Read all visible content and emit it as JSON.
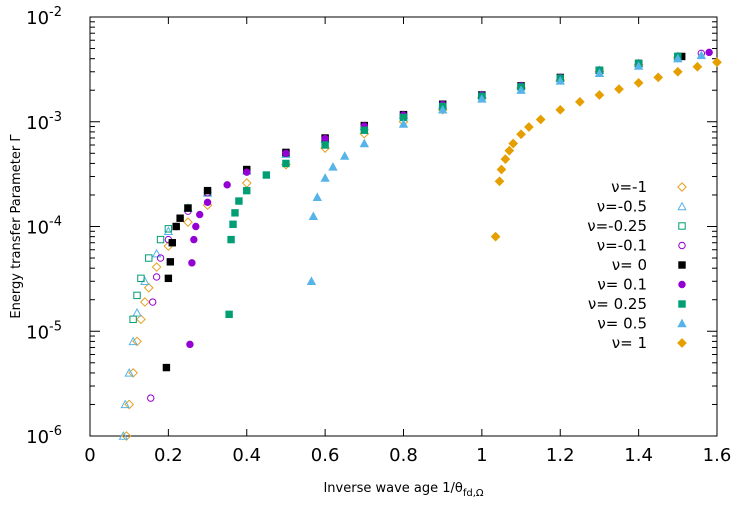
{
  "chart_data": {
    "type": "scatter",
    "title": "",
    "xlabel": "Inverse wave age 1/θ",
    "xlabel_subscript": "fd,Ω",
    "ylabel": "Energy transfer Parameter  Γ",
    "xlim": [
      0,
      1.6
    ],
    "ylim": [
      1e-06,
      0.01
    ],
    "yscale": "log",
    "grid": false,
    "legend_position": "right",
    "x_ticks": [
      {
        "value": 0,
        "label": "0"
      },
      {
        "value": 0.2,
        "label": "0.2"
      },
      {
        "value": 0.4,
        "label": "0.4"
      },
      {
        "value": 0.6,
        "label": "0.6"
      },
      {
        "value": 0.8,
        "label": "0.8"
      },
      {
        "value": 1,
        "label": "1"
      },
      {
        "value": 1.2,
        "label": "1.2"
      },
      {
        "value": 1.4,
        "label": "1.4"
      },
      {
        "value": 1.6,
        "label": "1.6"
      }
    ],
    "y_ticks": [
      {
        "value": 1e-06,
        "base": "10",
        "exp": "-6"
      },
      {
        "value": 1e-05,
        "base": "10",
        "exp": "-5"
      },
      {
        "value": 0.0001,
        "base": "10",
        "exp": "-4"
      },
      {
        "value": 0.001,
        "base": "10",
        "exp": "-3"
      },
      {
        "value": 0.01,
        "base": "10",
        "exp": "-2"
      }
    ],
    "series": [
      {
        "name": "ν=-1",
        "marker": "diamond-open",
        "color": "#e6a020",
        "x": [
          0.093,
          0.1,
          0.11,
          0.12,
          0.13,
          0.14,
          0.15,
          0.17,
          0.2,
          0.25,
          0.3,
          0.4,
          0.5,
          0.6,
          0.7,
          0.8,
          0.9,
          1.0,
          1.1,
          1.2,
          1.3,
          1.4,
          1.5
        ],
        "y": [
          1e-06,
          2e-06,
          4e-06,
          8e-06,
          1.3e-05,
          1.9e-05,
          2.6e-05,
          4.1e-05,
          6.5e-05,
          0.00011,
          0.00016,
          0.00026,
          0.00039,
          0.00056,
          0.00077,
          0.001,
          0.0013,
          0.0017,
          0.0021,
          0.0025,
          0.003,
          0.0035,
          0.0041
        ]
      },
      {
        "name": "ν=-0.5",
        "marker": "triangle-open",
        "color": "#56b4e9",
        "x": [
          0.085,
          0.09,
          0.1,
          0.11,
          0.12,
          0.14,
          0.17,
          0.2,
          0.25,
          0.3,
          0.4,
          0.5,
          0.6,
          0.7,
          0.8,
          0.9,
          1.0,
          1.1,
          1.2,
          1.3,
          1.4,
          1.5
        ],
        "y": [
          1e-06,
          2e-06,
          4e-06,
          8e-06,
          1.5e-05,
          3e-05,
          5.5e-05,
          9e-05,
          0.00015,
          0.00021,
          0.00034,
          0.00049,
          0.00068,
          0.0009,
          0.00115,
          0.00145,
          0.0018,
          0.0022,
          0.0026,
          0.0031,
          0.0036,
          0.0042
        ]
      },
      {
        "name": "ν=-0.25",
        "marker": "square-open",
        "color": "#009e73",
        "x": [
          0.11,
          0.12,
          0.13,
          0.15,
          0.18,
          0.2,
          0.25,
          0.3,
          0.4,
          0.5,
          0.6,
          0.7,
          0.8,
          0.9,
          1.0,
          1.1,
          1.2,
          1.3,
          1.4,
          1.5
        ],
        "y": [
          1.3e-05,
          2.2e-05,
          3.2e-05,
          5e-05,
          7.5e-05,
          9.5e-05,
          0.00015,
          0.00021,
          0.00034,
          0.0005,
          0.00069,
          0.0009,
          0.00115,
          0.00145,
          0.0018,
          0.0022,
          0.0026,
          0.0031,
          0.0036,
          0.0042
        ]
      },
      {
        "name": "ν=-0.1",
        "marker": "circle-open",
        "color": "#9400d3",
        "x": [
          0.155,
          0.16,
          0.17,
          0.18,
          0.2,
          0.22,
          0.25,
          0.3,
          0.4,
          0.5,
          0.6,
          0.7,
          0.8,
          0.9,
          1.0,
          1.1,
          1.2,
          1.3,
          1.4,
          1.5,
          1.56
        ],
        "y": [
          2.3e-06,
          1.9e-05,
          3.3e-05,
          5e-05,
          7.5e-05,
          0.0001,
          0.00014,
          0.00021,
          0.00034,
          0.0005,
          0.00069,
          0.00091,
          0.00116,
          0.00146,
          0.0018,
          0.0022,
          0.00265,
          0.0031,
          0.0036,
          0.0042,
          0.0045
        ]
      },
      {
        "name": "ν= 0",
        "marker": "square-filled",
        "color": "#000000",
        "x": [
          0.195,
          0.2,
          0.205,
          0.21,
          0.22,
          0.23,
          0.25,
          0.3,
          0.4,
          0.5,
          0.6,
          0.7,
          0.8,
          0.9,
          1.0,
          1.1,
          1.2,
          1.3,
          1.4,
          1.51
        ],
        "y": [
          4.5e-06,
          3.2e-05,
          4.6e-05,
          7e-05,
          0.0001,
          0.00012,
          0.00015,
          0.00022,
          0.00035,
          0.00051,
          0.0007,
          0.00092,
          0.00117,
          0.00147,
          0.0018,
          0.0022,
          0.00265,
          0.0031,
          0.0036,
          0.0042
        ]
      },
      {
        "name": "ν= 0.1",
        "marker": "circle-filled",
        "color": "#9400d3",
        "x": [
          0.255,
          0.26,
          0.265,
          0.27,
          0.28,
          0.3,
          0.35,
          0.4,
          0.5,
          0.6,
          0.7,
          0.8,
          0.9,
          1.0,
          1.1,
          1.2,
          1.3,
          1.4,
          1.5,
          1.58
        ],
        "y": [
          7.5e-06,
          4.5e-05,
          7.5e-05,
          0.0001,
          0.00013,
          0.00017,
          0.00025,
          0.00033,
          0.0005,
          0.00069,
          0.00091,
          0.00116,
          0.00146,
          0.0018,
          0.0022,
          0.00265,
          0.0031,
          0.0036,
          0.0042,
          0.0046
        ]
      },
      {
        "name": "ν= 0.25",
        "marker": "square-filled",
        "color": "#009e73",
        "x": [
          0.355,
          0.36,
          0.365,
          0.37,
          0.38,
          0.4,
          0.45,
          0.5,
          0.6,
          0.7,
          0.8,
          0.9,
          1.0,
          1.1,
          1.2,
          1.3,
          1.4,
          1.5
        ],
        "y": [
          1.45e-05,
          7.5e-05,
          0.000105,
          0.000135,
          0.000175,
          0.00022,
          0.00031,
          0.0004,
          0.0006,
          0.00083,
          0.0011,
          0.0014,
          0.00175,
          0.00215,
          0.0026,
          0.0031,
          0.0036,
          0.0042
        ]
      },
      {
        "name": "ν= 0.5",
        "marker": "triangle-filled",
        "color": "#56b4e9",
        "x": [
          0.565,
          0.57,
          0.58,
          0.6,
          0.62,
          0.65,
          0.7,
          0.8,
          0.9,
          1.0,
          1.1,
          1.2,
          1.3,
          1.4,
          1.5,
          1.56
        ],
        "y": [
          3e-05,
          0.000125,
          0.00019,
          0.00029,
          0.00037,
          0.00047,
          0.00062,
          0.00095,
          0.0013,
          0.00165,
          0.002,
          0.00245,
          0.0029,
          0.0034,
          0.004,
          0.0043
        ]
      },
      {
        "name": "ν= 1",
        "marker": "diamond-filled",
        "color": "#e69f00",
        "x": [
          1.035,
          1.045,
          1.05,
          1.06,
          1.07,
          1.08,
          1.1,
          1.12,
          1.15,
          1.2,
          1.25,
          1.3,
          1.35,
          1.4,
          1.45,
          1.5,
          1.55,
          1.6
        ],
        "y": [
          8e-05,
          0.00027,
          0.00035,
          0.00044,
          0.00053,
          0.00062,
          0.00076,
          0.00089,
          0.00105,
          0.0013,
          0.00155,
          0.0018,
          0.00205,
          0.00235,
          0.00265,
          0.003,
          0.00335,
          0.0037
        ]
      }
    ]
  }
}
